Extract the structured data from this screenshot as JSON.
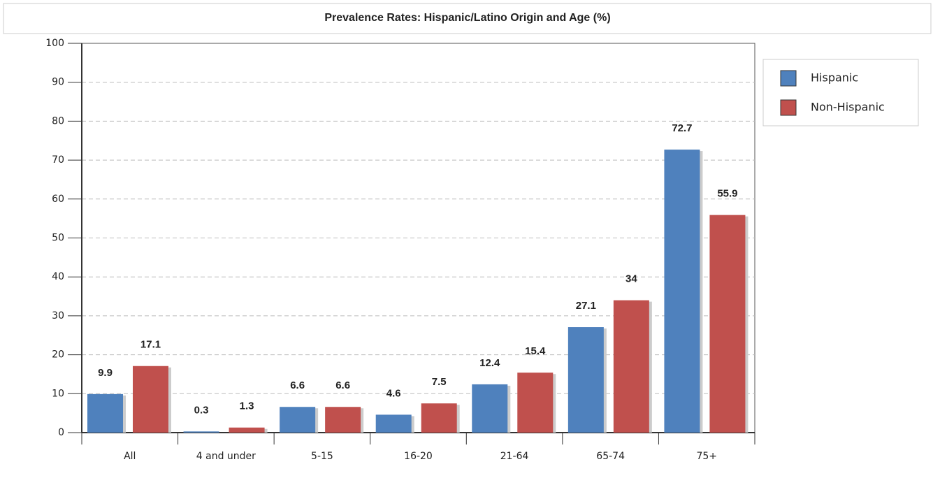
{
  "chart_data": {
    "type": "bar",
    "title": "Prevalence Rates: Hispanic/Latino Origin and Age (%)",
    "categories": [
      "All",
      "4 and under",
      "5-15",
      "16-20",
      "21-64",
      "65-74",
      "75+"
    ],
    "series": [
      {
        "name": "Hispanic",
        "color": "#4f81bd",
        "values": [
          9.9,
          0.3,
          6.6,
          4.6,
          12.4,
          27.1,
          72.7
        ]
      },
      {
        "name": "Non-Hispanic",
        "color": "#c0504d",
        "values": [
          17.1,
          1.3,
          6.6,
          7.5,
          15.4,
          34,
          55.9
        ]
      }
    ],
    "ylim": [
      0,
      100
    ],
    "yticks": [
      0,
      10,
      20,
      30,
      40,
      50,
      60,
      70,
      80,
      90,
      100
    ],
    "grid": true,
    "legend": "right"
  }
}
